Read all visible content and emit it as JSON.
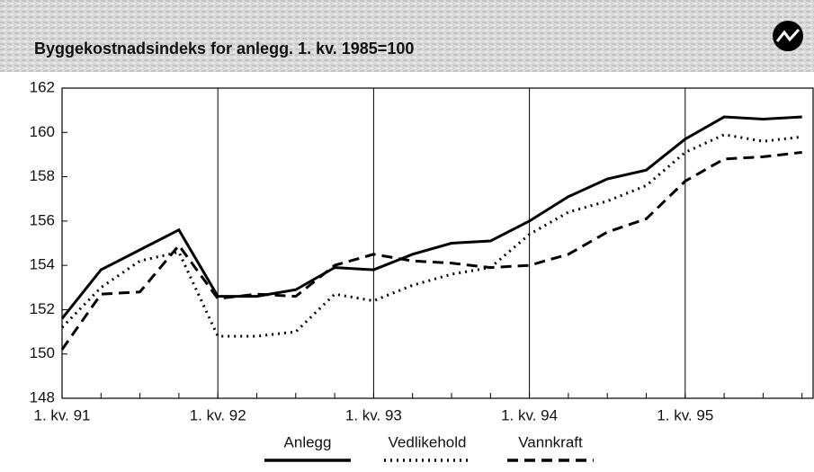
{
  "chart_data": {
    "type": "line",
    "title": "Byggekostnadsindeks for anlegg. 1. kv. 1985=100",
    "categories": [
      "1. kv. 91",
      null,
      null,
      null,
      "1. kv. 92",
      null,
      null,
      null,
      "1. kv. 93",
      null,
      null,
      null,
      "1. kv. 94",
      null,
      null,
      null,
      "1. kv. 95",
      null,
      null,
      null
    ],
    "series": [
      {
        "name": "Anlegg",
        "color": "#000000",
        "style": "solid",
        "values": [
          151.6,
          153.8,
          154.7,
          155.6,
          152.6,
          152.6,
          152.9,
          153.9,
          153.8,
          154.5,
          155.0,
          155.1,
          156.0,
          157.1,
          157.9,
          158.3,
          159.7,
          160.7,
          160.6,
          160.7
        ]
      },
      {
        "name": "Vedlikehold",
        "color": "#000000",
        "style": "dotted",
        "values": [
          151.2,
          153.0,
          154.2,
          154.6,
          150.8,
          150.8,
          151.0,
          152.7,
          152.4,
          153.1,
          153.6,
          153.9,
          155.4,
          156.4,
          156.9,
          157.6,
          159.1,
          159.9,
          159.6,
          159.8
        ]
      },
      {
        "name": "Vannkraft",
        "color": "#000000",
        "style": "dashed",
        "values": [
          150.2,
          152.7,
          152.8,
          154.9,
          152.5,
          152.7,
          152.6,
          154.0,
          154.5,
          154.2,
          154.1,
          153.9,
          154.0,
          154.5,
          155.5,
          156.1,
          157.8,
          158.8,
          158.9,
          159.1
        ]
      }
    ],
    "ylim": [
      148,
      162
    ],
    "yticks": [
      148,
      150,
      152,
      154,
      156,
      158,
      160,
      162
    ]
  }
}
